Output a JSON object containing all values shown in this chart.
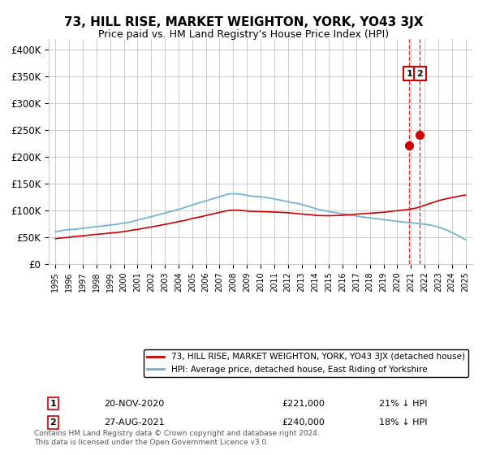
{
  "title": "73, HILL RISE, MARKET WEIGHTON, YORK, YO43 3JX",
  "subtitle": "Price paid vs. HM Land Registry's House Price Index (HPI)",
  "ylabel": "",
  "ylim": [
    0,
    420000
  ],
  "yticks": [
    0,
    50000,
    100000,
    150000,
    200000,
    250000,
    300000,
    350000,
    400000
  ],
  "ytick_labels": [
    "£0",
    "£50K",
    "£100K",
    "£150K",
    "£200K",
    "£250K",
    "£300K",
    "£350K",
    "£400K"
  ],
  "hpi_color": "#6baed6",
  "price_color": "#cc0000",
  "marker_color": "#cc0000",
  "vline_color": "#cc0000",
  "annotation_box_color": "#cc0000",
  "background_color": "#ffffff",
  "grid_color": "#cccccc",
  "transaction1_date": "20-NOV-2020",
  "transaction1_price": 221000,
  "transaction1_pct": "21% ↓ HPI",
  "transaction2_date": "27-AUG-2021",
  "transaction2_price": 240000,
  "transaction2_pct": "18% ↓ HPI",
  "legend_label1": "73, HILL RISE, MARKET WEIGHTON, YORK, YO43 3JX (detached house)",
  "legend_label2": "HPI: Average price, detached house, East Riding of Yorkshire",
  "footnote": "Contains HM Land Registry data © Crown copyright and database right 2024.\nThis data is licensed under the Open Government Licence v3.0.",
  "x_start_year": 1995,
  "x_end_year": 2025
}
